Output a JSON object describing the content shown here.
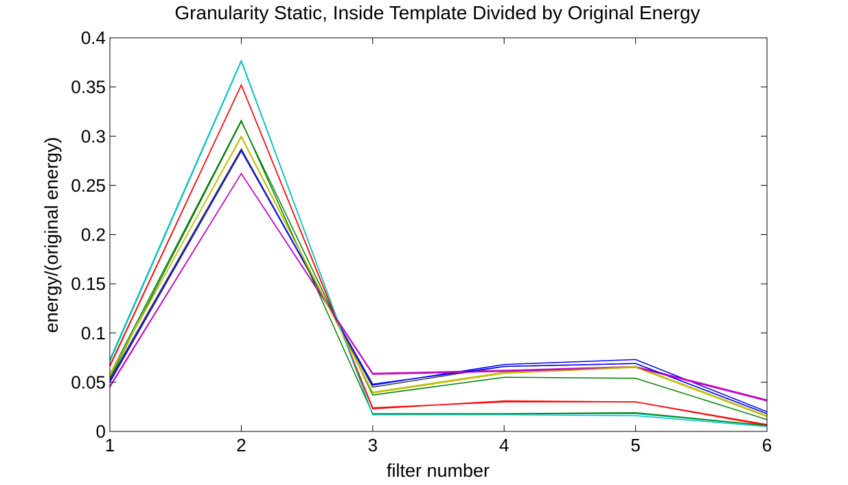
{
  "chart_data": {
    "type": "line",
    "title": "Granularity Static, Inside Template Divided by Original Energy",
    "xlabel": "filter number",
    "ylabel": "energy/(original energy)",
    "xlim": [
      1,
      6
    ],
    "ylim": [
      0,
      0.4
    ],
    "xticks": [
      1,
      2,
      3,
      4,
      5,
      6
    ],
    "xtick_labels": [
      "1",
      "2",
      "3",
      "4",
      "5",
      "6"
    ],
    "yticks": [
      0,
      0.05,
      0.1,
      0.15,
      0.2,
      0.25,
      0.3,
      0.35,
      0.4
    ],
    "ytick_labels": [
      "0",
      "0.05",
      "0.1",
      "0.15",
      "0.2",
      "0.25",
      "0.3",
      "0.35",
      "0.4"
    ],
    "grid": false,
    "legend": false,
    "x": [
      1,
      2,
      3,
      4,
      5,
      6
    ],
    "series": [
      {
        "color": "#0000ff",
        "values": [
          0.052,
          0.287,
          0.047,
          0.068,
          0.073,
          0.02
        ]
      },
      {
        "color": "#007f00",
        "values": [
          0.054,
          0.315,
          0.037,
          0.055,
          0.054,
          0.012
        ]
      },
      {
        "color": "#ff0000",
        "values": [
          0.066,
          0.352,
          0.023,
          0.031,
          0.03,
          0.006
        ]
      },
      {
        "color": "#00bfbf",
        "values": [
          0.073,
          0.377,
          0.017,
          0.018,
          0.018,
          0.006
        ]
      },
      {
        "color": "#bf00bf",
        "values": [
          0.045,
          0.262,
          0.059,
          0.062,
          0.066,
          0.032
        ]
      },
      {
        "color": "#bfbf00",
        "values": [
          0.057,
          0.3,
          0.04,
          0.06,
          0.066,
          0.016
        ]
      },
      {
        "color": "#404040",
        "values": [
          0.053,
          0.287,
          0.045,
          0.066,
          0.069,
          0.018
        ]
      },
      {
        "color": "#0000ff",
        "values": [
          0.05,
          0.285,
          0.048,
          0.066,
          0.069,
          0.018
        ]
      },
      {
        "color": "#007f00",
        "values": [
          0.058,
          0.316,
          0.018,
          0.018,
          0.019,
          0.006
        ]
      },
      {
        "color": "#ff0000",
        "values": [
          0.067,
          0.352,
          0.024,
          0.03,
          0.03,
          0.007
        ]
      },
      {
        "color": "#00bfbf",
        "values": [
          0.071,
          0.376,
          0.017,
          0.017,
          0.016,
          0.005
        ]
      },
      {
        "color": "#bf00bf",
        "values": [
          0.046,
          0.262,
          0.058,
          0.061,
          0.065,
          0.031
        ]
      },
      {
        "color": "#bfbf00",
        "values": [
          0.058,
          0.299,
          0.039,
          0.059,
          0.065,
          0.015
        ]
      }
    ]
  }
}
